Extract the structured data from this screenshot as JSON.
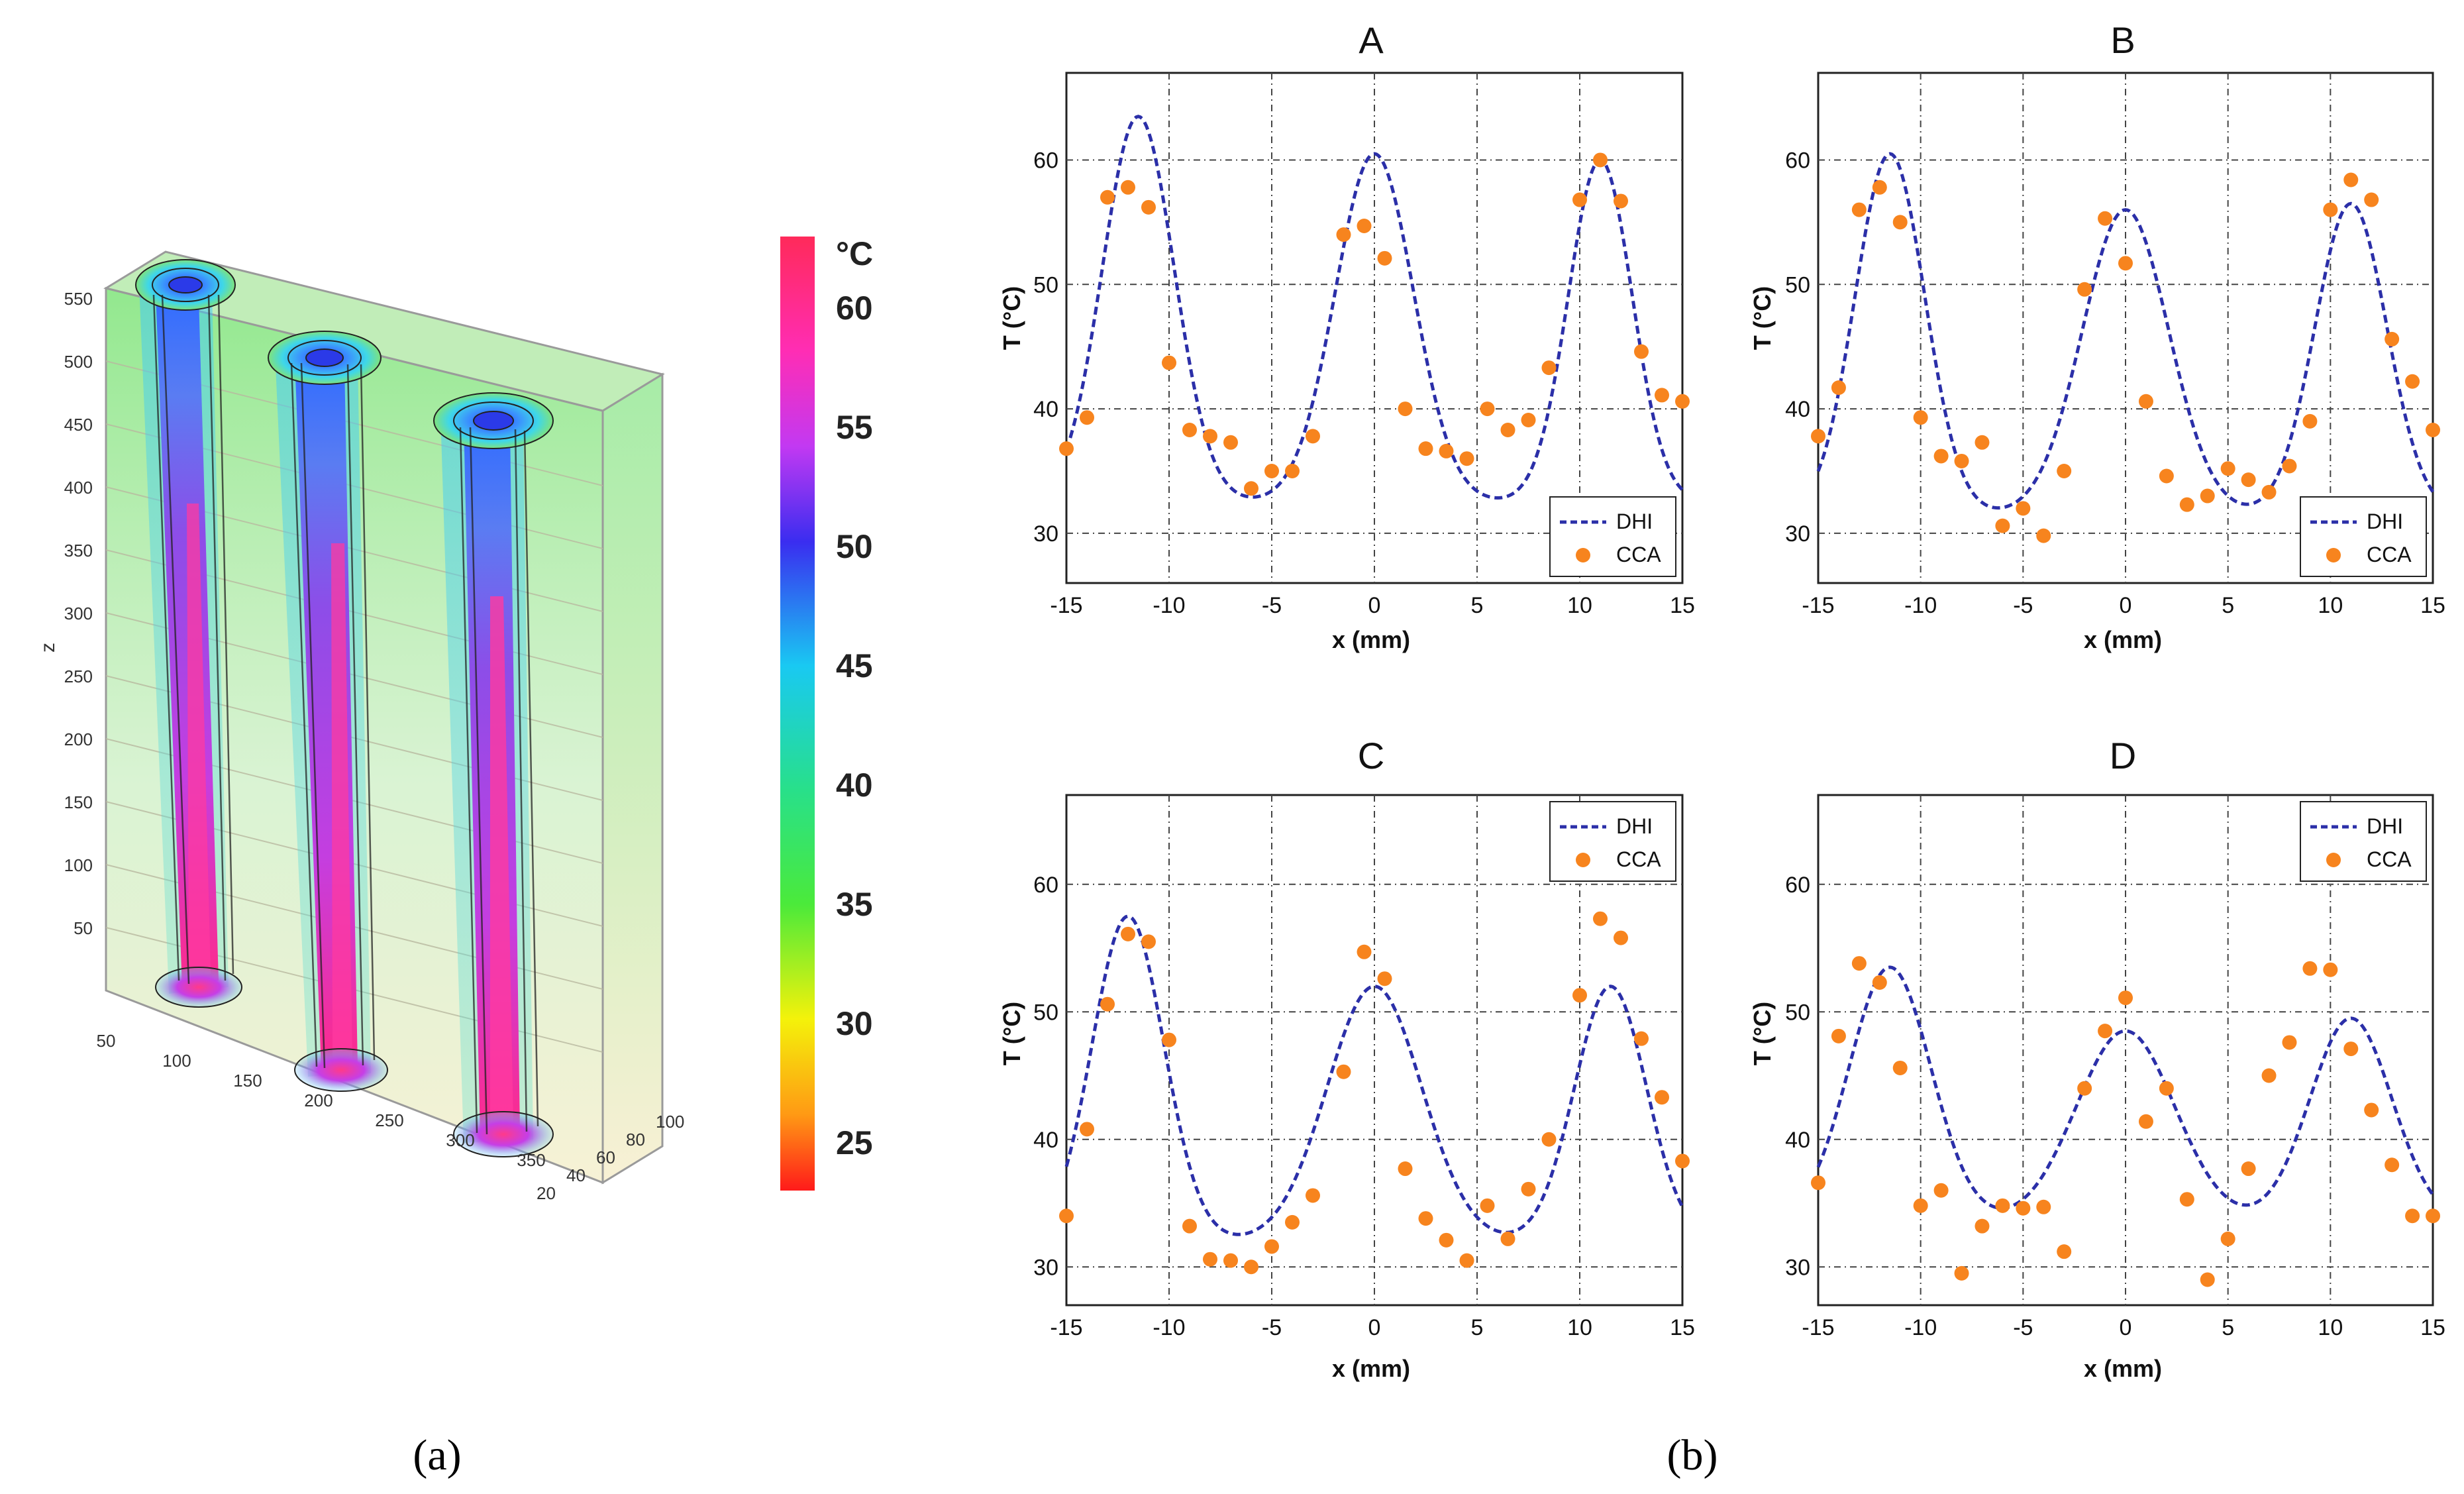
{
  "figure": {
    "panel_a_label": "(a)",
    "panel_b_label": "(b)"
  },
  "volume_plot": {
    "z_axis_label": "z",
    "z_ticks": [
      "50",
      "100",
      "150",
      "200",
      "250",
      "300",
      "350",
      "400",
      "450",
      "500",
      "550"
    ],
    "x_ticks": [
      "50",
      "100",
      "150",
      "200",
      "250",
      "300",
      "350"
    ],
    "y_ticks": [
      "20",
      "40",
      "60",
      "80",
      "100"
    ],
    "colorbar": {
      "unit": "°C",
      "ticks": [
        "60",
        "55",
        "50",
        "45",
        "40",
        "35",
        "30",
        "25"
      ],
      "min": 23,
      "max": 63
    },
    "colors": {
      "hot": "#ff1f7a",
      "mid": "#8a3df0",
      "cool": "#2f8cff",
      "bg_green": "#8fe07a",
      "bg_yellow": "#f3ecb0"
    }
  },
  "chart_data": [
    {
      "type": "scatter",
      "title": "A",
      "xlabel": "x (mm)",
      "ylabel": "T (°C)",
      "xlim": [
        -15,
        15
      ],
      "ylim": [
        26,
        67
      ],
      "xticks": [
        -15,
        -10,
        -5,
        0,
        5,
        10,
        15
      ],
      "yticks": [
        30,
        40,
        50,
        60
      ],
      "legend_position": "bottom-right",
      "series": [
        {
          "name": "DHI",
          "style": "dashed-line",
          "color": "#2b2fa8",
          "peaks": [
            {
              "mu": -11.5,
              "amp": 31,
              "sigma": 1.75
            },
            {
              "mu": 0,
              "amp": 28,
              "sigma": 1.9
            },
            {
              "mu": 11,
              "amp": 27.5,
              "sigma": 1.55
            }
          ],
          "baseline": 32.5
        },
        {
          "name": "CCA",
          "style": "marker",
          "color": "#f7841e",
          "x": [
            -15,
            -14,
            -13,
            -12,
            -11,
            -10,
            -9,
            -8,
            -7,
            -6,
            -5,
            -4,
            -3,
            -1.5,
            -0.5,
            0.5,
            1.5,
            2.5,
            3.5,
            4.5,
            5.5,
            6.5,
            7.5,
            8.5,
            10,
            11,
            12,
            13,
            14,
            15
          ],
          "y": [
            36.8,
            39.3,
            57,
            57.8,
            56.2,
            43.7,
            38.3,
            37.8,
            37.3,
            33.6,
            35,
            35,
            37.8,
            54,
            54.7,
            52.1,
            40,
            36.8,
            36.6,
            36,
            40,
            38.3,
            39.1,
            43.3,
            56.8,
            60,
            56.7,
            44.6,
            41.1,
            40.6
          ]
        }
      ]
    },
    {
      "type": "scatter",
      "title": "B",
      "xlabel": "x (mm)",
      "ylabel": "T (°C)",
      "xlim": [
        -15,
        15
      ],
      "ylim": [
        26,
        67
      ],
      "xticks": [
        -15,
        -10,
        -5,
        0,
        5,
        10,
        15
      ],
      "yticks": [
        30,
        40,
        50,
        60
      ],
      "legend_position": "bottom-right",
      "series": [
        {
          "name": "DHI",
          "style": "dashed-line",
          "color": "#2b2fa8",
          "peaks": [
            {
              "mu": -11.5,
              "amp": 29,
              "sigma": 1.7
            },
            {
              "mu": 0,
              "amp": 24.5,
              "sigma": 2.1
            },
            {
              "mu": 11,
              "amp": 25,
              "sigma": 1.75
            }
          ],
          "baseline": 31.5
        },
        {
          "name": "CCA",
          "style": "marker",
          "color": "#f7841e",
          "x": [
            -15,
            -14,
            -13,
            -12,
            -11,
            -10,
            -9,
            -8,
            -7,
            -6,
            -5,
            -4,
            -3,
            -2,
            -1,
            0,
            1,
            2,
            3,
            4,
            5,
            6,
            7,
            8,
            9,
            10,
            11,
            12,
            13,
            14,
            15
          ],
          "y": [
            37.8,
            41.7,
            56,
            57.8,
            55,
            39.3,
            36.2,
            35.8,
            37.3,
            30.6,
            32,
            29.8,
            35,
            49.6,
            55.3,
            51.7,
            40.6,
            34.6,
            32.3,
            33,
            35.2,
            34.3,
            33.3,
            35.4,
            39,
            56,
            58.4,
            56.8,
            45.6,
            42.2,
            38.3
          ]
        }
      ]
    },
    {
      "type": "scatter",
      "title": "C",
      "xlabel": "x (mm)",
      "ylabel": "T (°C)",
      "xlim": [
        -15,
        15
      ],
      "ylim": [
        27,
        67
      ],
      "xticks": [
        -15,
        -10,
        -5,
        0,
        5,
        10,
        15
      ],
      "yticks": [
        30,
        40,
        50,
        60
      ],
      "legend_position": "top-right",
      "series": [
        {
          "name": "DHI",
          "style": "dashed-line",
          "color": "#2b2fa8",
          "peaks": [
            {
              "mu": -12,
              "amp": 25.5,
              "sigma": 1.75
            },
            {
              "mu": 0,
              "amp": 20,
              "sigma": 2.3
            },
            {
              "mu": 11.5,
              "amp": 20,
              "sigma": 1.75
            }
          ],
          "baseline": 32
        },
        {
          "name": "CCA",
          "style": "marker",
          "color": "#f7841e",
          "x": [
            -15,
            -14,
            -13,
            -12,
            -11,
            -10,
            -9,
            -8,
            -7,
            -6,
            -5,
            -4,
            -3,
            -1.5,
            -0.5,
            0.5,
            1.5,
            2.5,
            3.5,
            4.5,
            5.5,
            6.5,
            7.5,
            8.5,
            10,
            11,
            12,
            13,
            14,
            15
          ],
          "y": [
            34,
            40.8,
            50.6,
            56.1,
            55.5,
            47.8,
            33.2,
            30.6,
            30.5,
            30,
            31.6,
            33.5,
            35.6,
            45.3,
            54.7,
            52.6,
            37.7,
            33.8,
            32.1,
            30.5,
            34.8,
            32.2,
            36.1,
            40,
            51.3,
            57.3,
            55.8,
            47.9,
            43.3,
            38.3
          ]
        }
      ]
    },
    {
      "type": "scatter",
      "title": "D",
      "xlabel": "x (mm)",
      "ylabel": "T (°C)",
      "xlim": [
        -15,
        15
      ],
      "ylim": [
        27,
        67
      ],
      "xticks": [
        -15,
        -10,
        -5,
        0,
        5,
        10,
        15
      ],
      "yticks": [
        30,
        40,
        50,
        60
      ],
      "legend_position": "top-right",
      "series": [
        {
          "name": "DHI",
          "style": "dashed-line",
          "color": "#2b2fa8",
          "peaks": [
            {
              "mu": -11.5,
              "amp": 20,
              "sigma": 2
            },
            {
              "mu": 0,
              "amp": 15,
              "sigma": 2.4
            },
            {
              "mu": 11,
              "amp": 16,
              "sigma": 2
            }
          ],
          "baseline": 33.5
        },
        {
          "name": "CCA",
          "style": "marker",
          "color": "#f7841e",
          "x": [
            -15,
            -14,
            -13,
            -12,
            -11,
            -10,
            -9,
            -8,
            -7,
            -6,
            -5,
            -4,
            -3,
            -2,
            -1,
            0,
            1,
            2,
            3,
            4,
            5,
            6,
            7,
            8,
            9,
            10,
            11,
            12,
            13,
            14,
            15
          ],
          "y": [
            36.6,
            48.1,
            53.8,
            52.3,
            45.6,
            34.8,
            36,
            29.5,
            33.2,
            34.8,
            34.6,
            34.7,
            31.2,
            44,
            48.5,
            51.1,
            41.4,
            44,
            35.3,
            29,
            32.2,
            37.7,
            45,
            47.6,
            53.4,
            53.3,
            47.1,
            42.3,
            38,
            34,
            34
          ]
        }
      ]
    }
  ]
}
